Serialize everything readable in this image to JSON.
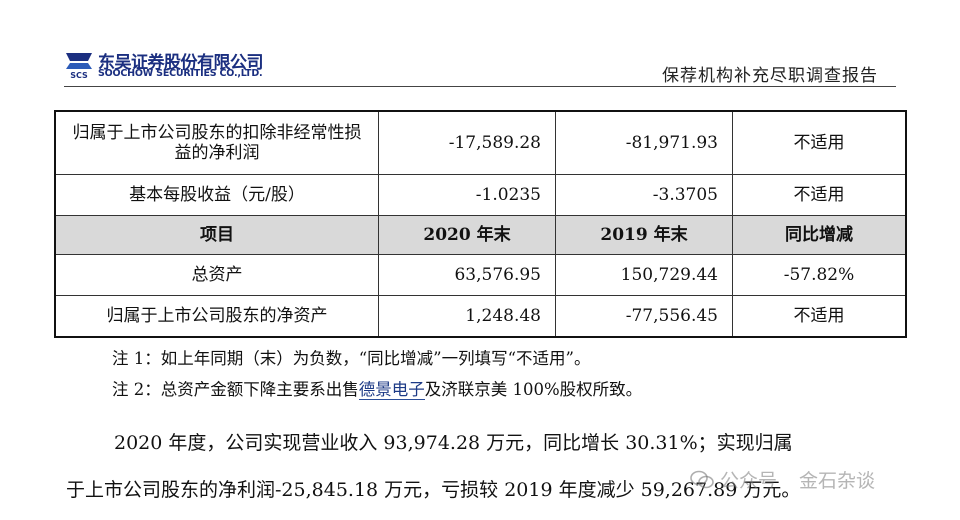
{
  "header": {
    "company_cn": "东吴证券股份有限公司",
    "company_en": "SOOCHOW SECURITIES CO.,LTD.",
    "logo_mark_text": "SCS",
    "report_title": "保荐机构补充尽职调查报告"
  },
  "table": {
    "rows": [
      {
        "label": "归属于上市公司股东的扣除非经常性损益的净利润",
        "v1": "-17,589.28",
        "v2": "-81,971.93",
        "change": "不适用"
      },
      {
        "label": "基本每股收益（元/股）",
        "v1": "-1.0235",
        "v2": "-3.3705",
        "change": "不适用"
      }
    ],
    "header": {
      "item": "项目",
      "col1": "2020 年末",
      "col2": "2019 年末",
      "col3": "同比增减"
    },
    "rows2": [
      {
        "label": "总资产",
        "v1": "63,576.95",
        "v2": "150,729.44",
        "change": "-57.82%"
      },
      {
        "label": "归属于上市公司股东的净资产",
        "v1": "1,248.48",
        "v2": "-77,556.45",
        "change": "不适用"
      }
    ]
  },
  "notes": {
    "note1": "注 1：如上年同期（末）为负数，“同比增减”一列填写“不适用”。",
    "note2_prefix": "注 2：总资产金额下降主要系出售",
    "note2_link": "德景电子",
    "note2_suffix": "及济联京美 100%股权所致。"
  },
  "paragraph": {
    "line1": "2020 年度，公司实现营业收入 93,974.28 万元，同比增长 30.31%；实现归属",
    "line2": "于上市公司股东的净利润-25,845.18 万元，亏损较 2019 年度减少 59,267.89 万元。"
  },
  "watermark": {
    "part1": "公众号",
    "part2": "金石杂谈"
  }
}
